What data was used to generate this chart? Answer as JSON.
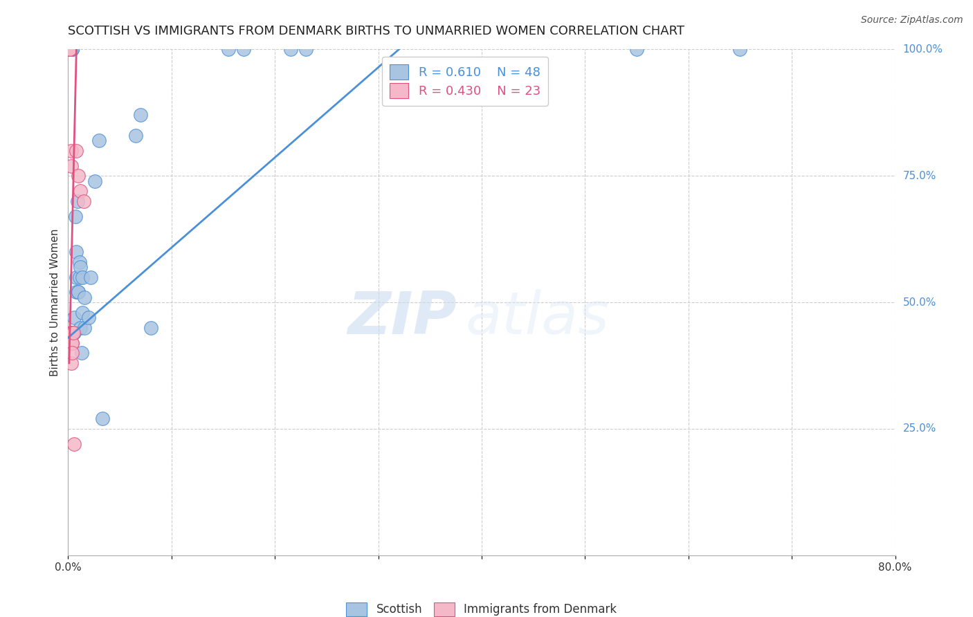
{
  "title": "SCOTTISH VS IMMIGRANTS FROM DENMARK BIRTHS TO UNMARRIED WOMEN CORRELATION CHART",
  "source": "Source: ZipAtlas.com",
  "ylabel": "Births to Unmarried Women",
  "xlim": [
    0.0,
    0.8
  ],
  "ylim": [
    0.0,
    1.0
  ],
  "xtick_positions": [
    0.0,
    0.1,
    0.2,
    0.3,
    0.4,
    0.5,
    0.6,
    0.7,
    0.8
  ],
  "xtick_labels": [
    "0.0%",
    "",
    "",
    "",
    "",
    "",
    "",
    "",
    "80.0%"
  ],
  "yticks_right": [
    0.25,
    0.5,
    0.75,
    1.0
  ],
  "ytick_right_labels": [
    "25.0%",
    "50.0%",
    "75.0%",
    "100.0%"
  ],
  "grid_color": "#cccccc",
  "background_color": "#ffffff",
  "blue_color": "#a8c4e0",
  "pink_color": "#f4b8c8",
  "blue_line_color": "#4a90d9",
  "pink_line_color": "#e05080",
  "legend_blue_R": "0.610",
  "legend_blue_N": "48",
  "legend_pink_R": "0.430",
  "legend_pink_N": "23",
  "legend_label_blue": "Scottish",
  "legend_label_pink": "Immigrants from Denmark",
  "watermark_zip": "ZIP",
  "watermark_atlas": "atlas",
  "blue_scatter_x": [
    0.002,
    0.002,
    0.002,
    0.002,
    0.002,
    0.003,
    0.003,
    0.003,
    0.004,
    0.004,
    0.004,
    0.004,
    0.005,
    0.005,
    0.005,
    0.005,
    0.006,
    0.006,
    0.007,
    0.008,
    0.008,
    0.008,
    0.009,
    0.01,
    0.01,
    0.011,
    0.011,
    0.012,
    0.012,
    0.013,
    0.014,
    0.014,
    0.016,
    0.016,
    0.02,
    0.022,
    0.026,
    0.03,
    0.033,
    0.065,
    0.07,
    0.08,
    0.155,
    0.17,
    0.215,
    0.23,
    0.55,
    0.65
  ],
  "blue_scatter_y": [
    1.0,
    1.0,
    1.0,
    1.0,
    1.0,
    1.0,
    1.0,
    1.0,
    1.0,
    1.0,
    1.0,
    1.0,
    0.44,
    0.44,
    0.44,
    0.44,
    0.47,
    0.44,
    0.67,
    0.6,
    0.55,
    0.52,
    0.7,
    0.52,
    0.52,
    0.58,
    0.55,
    0.57,
    0.45,
    0.4,
    0.55,
    0.48,
    0.51,
    0.45,
    0.47,
    0.55,
    0.74,
    0.82,
    0.27,
    0.83,
    0.87,
    0.45,
    1.0,
    1.0,
    1.0,
    1.0,
    1.0,
    1.0
  ],
  "pink_scatter_x": [
    0.001,
    0.001,
    0.002,
    0.002,
    0.002,
    0.003,
    0.003,
    0.003,
    0.003,
    0.003,
    0.003,
    0.003,
    0.004,
    0.004,
    0.004,
    0.004,
    0.004,
    0.005,
    0.006,
    0.008,
    0.01,
    0.012,
    0.015
  ],
  "pink_scatter_y": [
    1.0,
    1.0,
    1.0,
    1.0,
    1.0,
    0.8,
    0.77,
    0.44,
    0.44,
    0.44,
    0.42,
    0.38,
    0.44,
    0.42,
    0.44,
    0.42,
    0.4,
    0.44,
    0.22,
    0.8,
    0.75,
    0.72,
    0.7
  ],
  "blue_line_x": [
    0.0,
    0.32
  ],
  "blue_line_y": [
    0.43,
    1.0
  ],
  "pink_line_x": [
    0.001,
    0.008
  ],
  "pink_line_y": [
    0.38,
    1.0
  ],
  "scatter_size": 200,
  "title_fontsize": 13,
  "source_fontsize": 10,
  "ylabel_fontsize": 11,
  "tick_fontsize": 11,
  "legend_fontsize": 13
}
